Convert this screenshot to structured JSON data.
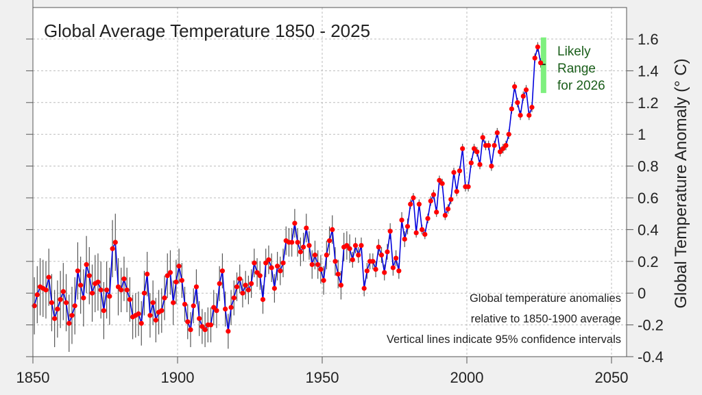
{
  "chart_data": {
    "type": "line",
    "title": "Global Average Temperature 1850 - 2025",
    "xlabel": "",
    "ylabel": "Global  Temperature  Anomaly  (° C)",
    "xlim": [
      1850,
      2055
    ],
    "ylim": [
      -0.4,
      1.6
    ],
    "xticks": [
      "1850",
      "1900",
      "1950",
      "2000",
      "2050"
    ],
    "yticks": [
      "-0.4",
      "-0.2",
      "0",
      "0.2",
      "0.4",
      "0.6",
      "0.8",
      "1",
      "1.2",
      "1.4",
      "1.6"
    ],
    "grid": true,
    "y_axis_side": "right",
    "colors": {
      "line": "#0000dd",
      "points": "#ff0000",
      "error_bars": "#555555",
      "likely_range": "#7ef07e",
      "range_text": "#1a5e1a"
    },
    "x_start": 1850,
    "series": [
      {
        "values": [
          -0.08,
          -0.01,
          0.04,
          0.03,
          0.02,
          0.1,
          -0.06,
          -0.16,
          -0.1,
          -0.04,
          0.01,
          -0.06,
          -0.19,
          -0.14,
          -0.08,
          0.14,
          0.05,
          -0.03,
          0.18,
          0.11,
          0.0,
          0.06,
          0.07,
          0.02,
          -0.11,
          0.02,
          -0.02,
          0.28,
          0.32,
          0.04,
          0.02,
          0.09,
          0.02,
          -0.04,
          -0.15,
          -0.14,
          -0.13,
          -0.19,
          0.0,
          0.12,
          -0.14,
          -0.06,
          -0.17,
          -0.12,
          -0.11,
          -0.03,
          0.11,
          0.13,
          -0.06,
          0.07,
          0.17,
          0.08,
          -0.07,
          -0.18,
          -0.23,
          -0.08,
          0.04,
          -0.16,
          -0.21,
          -0.23,
          -0.2,
          -0.2,
          -0.09,
          -0.11,
          0.06,
          0.14,
          -0.1,
          -0.24,
          -0.09,
          -0.03,
          0.04,
          0.09,
          0.0,
          0.05,
          0.02,
          0.06,
          0.19,
          0.13,
          0.11,
          -0.04,
          0.19,
          0.21,
          0.16,
          0.03,
          0.17,
          0.14,
          0.19,
          0.33,
          0.32,
          0.32,
          0.44,
          0.32,
          0.26,
          0.29,
          0.41,
          0.3,
          0.18,
          0.24,
          0.18,
          0.15,
          0.08,
          0.24,
          0.33,
          0.4,
          0.2,
          0.12,
          0.05,
          0.29,
          0.3,
          0.28,
          0.21,
          0.3,
          0.24,
          0.3,
          0.03,
          0.14,
          0.2,
          0.2,
          0.15,
          0.29,
          0.24,
          0.13,
          0.26,
          0.39,
          0.16,
          0.22,
          0.14,
          0.46,
          0.34,
          0.42,
          0.56,
          0.6,
          0.38,
          0.56,
          0.4,
          0.37,
          0.47,
          0.58,
          0.62,
          0.51,
          0.71,
          0.69,
          0.49,
          0.53,
          0.59,
          0.76,
          0.64,
          0.77,
          0.91,
          0.67,
          0.67,
          0.82,
          0.91,
          0.89,
          0.81,
          0.98,
          0.93,
          0.93,
          0.8,
          0.93,
          1.01,
          0.89,
          0.91,
          0.93,
          1.0,
          1.16,
          1.3,
          1.2,
          1.12,
          1.24,
          1.28,
          1.12,
          1.17,
          1.48,
          1.55,
          1.45
        ]
      }
    ],
    "ci95_halfwidth_by_period": [
      {
        "from": 1850,
        "to": 1879,
        "value": 0.18
      },
      {
        "from": 1880,
        "to": 1899,
        "value": 0.14
      },
      {
        "from": 1900,
        "to": 1919,
        "value": 0.11
      },
      {
        "from": 1920,
        "to": 1939,
        "value": 0.09
      },
      {
        "from": 1940,
        "to": 1959,
        "value": 0.09
      },
      {
        "from": 1960,
        "to": 1979,
        "value": 0.05
      },
      {
        "from": 1980,
        "to": 2025,
        "value": 0.03
      }
    ],
    "likely_range_2026": {
      "low": 1.26,
      "high": 1.61,
      "central": 1.44,
      "year": 2026,
      "label": [
        "Likely",
        "Range",
        "for 2026"
      ]
    },
    "annotations": [
      "Global temperature anomalies",
      "relative to 1850-1900 average",
      "Vertical lines indicate 95% confidence intervals"
    ]
  }
}
